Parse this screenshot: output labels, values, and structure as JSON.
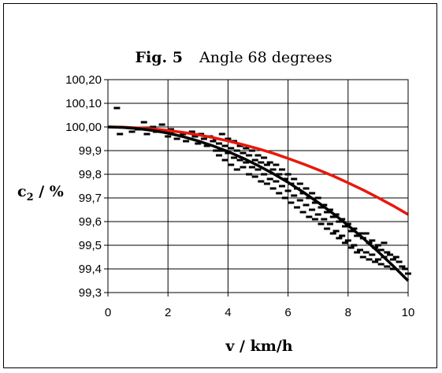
{
  "chart_data": {
    "type": "scatter",
    "title_bold": "Fig. 5",
    "title_rest": "Angle 68 degrees",
    "xlabel": "v / km/h",
    "ylabel_main": "c",
    "ylabel_sub": "2",
    "ylabel_rest": " / %",
    "xlim": [
      0,
      10
    ],
    "ylim": [
      99.3,
      100.2
    ],
    "x_ticks": [
      0,
      2,
      4,
      6,
      8,
      10
    ],
    "x_tick_labels": [
      "0",
      "2",
      "4",
      "6",
      "8",
      "10"
    ],
    "y_ticks": [
      99.3,
      99.4,
      99.5,
      99.6,
      99.7,
      99.8,
      99.9,
      100.0,
      100.1,
      100.2
    ],
    "y_tick_labels": [
      "99,3",
      "99,4",
      "99,5",
      "99,6",
      "99,7",
      "99,8",
      "99,9",
      "100,00",
      "100,10",
      "100,20"
    ],
    "grid": true,
    "series": [
      {
        "kind": "scatter",
        "color": "#000000",
        "x": [
          0.3,
          0.4,
          0.8,
          1.0,
          1.2,
          1.3,
          1.5,
          1.6,
          1.8,
          2.0,
          2.1,
          2.2,
          2.3,
          2.5,
          2.6,
          2.8,
          2.9,
          3.0,
          3.1,
          3.2,
          3.3,
          3.4,
          3.5,
          3.6,
          3.6,
          3.7,
          3.7,
          3.8,
          3.8,
          3.9,
          3.9,
          4.0,
          4.0,
          4.1,
          4.1,
          4.2,
          4.2,
          4.3,
          4.3,
          4.4,
          4.4,
          4.5,
          4.5,
          4.6,
          4.6,
          4.7,
          4.7,
          4.8,
          4.8,
          4.9,
          4.9,
          5.0,
          5.0,
          5.1,
          5.1,
          5.2,
          5.2,
          5.3,
          5.3,
          5.4,
          5.4,
          5.5,
          5.5,
          5.6,
          5.6,
          5.7,
          5.7,
          5.8,
          5.8,
          5.9,
          5.9,
          6.0,
          6.0,
          6.1,
          6.1,
          6.2,
          6.2,
          6.3,
          6.3,
          6.4,
          6.4,
          6.5,
          6.5,
          6.6,
          6.6,
          6.7,
          6.7,
          6.8,
          6.8,
          6.9,
          6.9,
          7.0,
          7.0,
          7.1,
          7.1,
          7.2,
          7.2,
          7.3,
          7.3,
          7.4,
          7.4,
          7.5,
          7.5,
          7.6,
          7.6,
          7.7,
          7.7,
          7.8,
          7.8,
          7.9,
          7.9,
          8.0,
          8.0,
          8.1,
          8.1,
          8.2,
          8.2,
          8.3,
          8.3,
          8.4,
          8.4,
          8.5,
          8.5,
          8.6,
          8.6,
          8.7,
          8.7,
          8.8,
          8.8,
          8.9,
          8.9,
          9.0,
          9.0,
          9.1,
          9.1,
          9.2,
          9.2,
          9.3,
          9.3,
          9.4,
          9.5,
          9.5,
          9.6,
          9.7,
          9.8,
          9.9,
          10.0
        ],
        "y": [
          100.08,
          99.97,
          99.98,
          99.99,
          100.02,
          99.97,
          100.0,
          99.98,
          100.01,
          99.96,
          99.99,
          99.98,
          99.95,
          99.97,
          99.94,
          99.98,
          99.96,
          99.93,
          99.97,
          99.95,
          99.92,
          99.96,
          99.94,
          99.9,
          99.95,
          99.93,
          99.88,
          99.97,
          99.9,
          99.92,
          99.86,
          99.95,
          99.89,
          99.91,
          99.84,
          99.94,
          99.87,
          99.9,
          99.82,
          99.92,
          99.86,
          99.89,
          99.83,
          99.91,
          99.85,
          99.88,
          99.8,
          99.9,
          99.83,
          99.86,
          99.79,
          99.88,
          99.82,
          99.85,
          99.77,
          99.87,
          99.8,
          99.84,
          99.76,
          99.85,
          99.78,
          99.82,
          99.74,
          99.84,
          99.77,
          99.8,
          99.72,
          99.82,
          99.75,
          99.78,
          99.7,
          99.8,
          99.73,
          99.76,
          99.68,
          99.78,
          99.71,
          99.74,
          99.66,
          99.76,
          99.69,
          99.72,
          99.64,
          99.74,
          99.67,
          99.7,
          99.62,
          99.72,
          99.65,
          99.68,
          99.61,
          99.7,
          99.63,
          99.66,
          99.59,
          99.67,
          99.61,
          99.64,
          99.57,
          99.65,
          99.59,
          99.62,
          99.55,
          99.63,
          99.56,
          99.6,
          99.53,
          99.61,
          99.54,
          99.58,
          99.51,
          99.59,
          99.52,
          99.56,
          99.49,
          99.57,
          99.5,
          99.54,
          99.47,
          99.55,
          99.48,
          99.53,
          99.45,
          99.55,
          99.47,
          99.51,
          99.44,
          99.52,
          99.46,
          99.49,
          99.43,
          99.5,
          99.44,
          99.48,
          99.42,
          99.51,
          99.45,
          99.47,
          99.41,
          99.46,
          99.44,
          99.4,
          99.45,
          99.43,
          99.41,
          99.4,
          99.38
        ]
      },
      {
        "kind": "line",
        "color": "#e8180c",
        "x": [
          0,
          0.5,
          1,
          1.5,
          2,
          2.5,
          3,
          3.5,
          4,
          4.5,
          5,
          5.5,
          6,
          6.5,
          7,
          7.5,
          8,
          8.5,
          9,
          9.5,
          10
        ],
        "y": [
          100.0,
          99.999,
          99.996,
          99.992,
          99.985,
          99.977,
          99.967,
          99.955,
          99.941,
          99.925,
          99.908,
          99.889,
          99.867,
          99.844,
          99.819,
          99.793,
          99.764,
          99.734,
          99.701,
          99.667,
          99.63
        ]
      },
      {
        "kind": "line",
        "color": "#000000",
        "x": [
          0,
          0.5,
          1,
          1.5,
          2,
          2.5,
          3,
          3.5,
          4,
          4.5,
          5,
          5.5,
          6,
          6.5,
          7,
          7.5,
          8,
          8.5,
          9,
          9.5,
          10
        ],
        "y": [
          100.0,
          99.998,
          99.993,
          99.985,
          99.974,
          99.959,
          99.941,
          99.92,
          99.896,
          99.868,
          99.837,
          99.803,
          99.766,
          99.725,
          99.681,
          99.634,
          99.584,
          99.53,
          99.473,
          99.413,
          99.35
        ]
      }
    ]
  }
}
